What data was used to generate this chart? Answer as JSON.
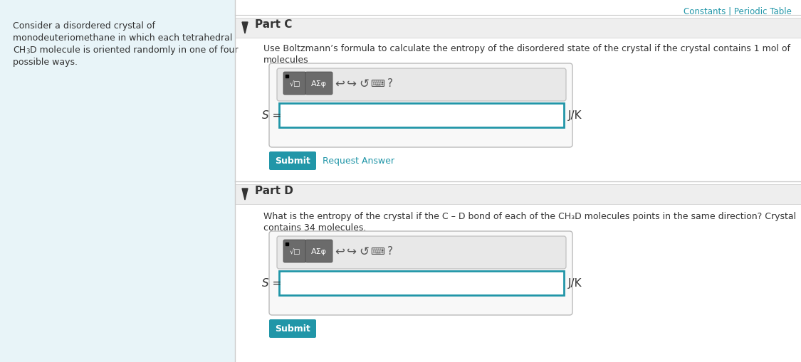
{
  "bg_color": "#f5f5f5",
  "white": "#ffffff",
  "left_panel_bg": "#e8f4f8",
  "left_panel_text_0": "Consider a disordered crystal of",
  "left_panel_text_1": "monodeuteriomethane in which each tetrahedral",
  "left_panel_text_2": "D molecule is oriented randomly in one of four",
  "left_panel_text_3": "possible ways.",
  "top_right_text": "Constants | Periodic Table",
  "top_right_color": "#2196a8",
  "part_c_label": "Part C",
  "part_c_text_line1": "Use Boltzmann’s formula to calculate the entropy of the disordered state of the crystal if the crystal contains 1 mol of",
  "part_c_text_line2": "molecules",
  "s_label": "S =",
  "jk_label": "J/K",
  "submit_text": "Submit",
  "submit_bg": "#2196a8",
  "submit_fg": "#ffffff",
  "request_answer_text": "Request Answer",
  "request_answer_color": "#2196a8",
  "part_d_label": "Part D",
  "part_d_text_line1": "What is the entropy of the crystal if the C – D bond of each of the CH₃D molecules points in the same direction? Crystal",
  "part_d_text_line2": "contains 34 molecules.",
  "toolbar_bg": "#5a5a5a",
  "toolbar_btn_bg": "#6b6b6b",
  "input_border_color": "#2196a8",
  "separator_color": "#cccccc",
  "part_header_bg": "#eeeeee",
  "divider_color": "#cccccc",
  "text_color": "#333333",
  "icon_color": "#555555"
}
